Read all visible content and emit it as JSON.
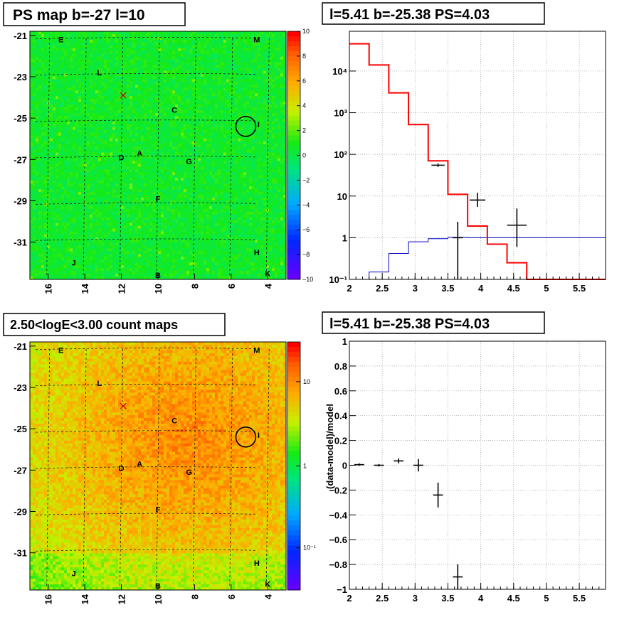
{
  "panels": {
    "ps_map_title": "PS map b=-27 l=10",
    "fit_title": "l=5.41 b=-25.38 PS=4.03",
    "count_map_title": "2.50<logE<3.00 count maps",
    "resid_title": "l=5.41 b=-25.38 PS=4.03"
  },
  "maps": {
    "ytick_labels": [
      "-21",
      "-23",
      "-25",
      "-27",
      "-29",
      "-31"
    ],
    "xtick_labels": [
      "16",
      "14",
      "12",
      "10",
      "8",
      "6",
      "4"
    ],
    "source_labels": [
      {
        "t": "E",
        "l": 15.3,
        "b": -21.2
      },
      {
        "t": "M",
        "l": 4.6,
        "b": -21.2
      },
      {
        "t": "L",
        "l": 13.2,
        "b": -22.8
      },
      {
        "t": "C",
        "l": 9.1,
        "b": -24.6
      },
      {
        "t": "I",
        "l": 4.5,
        "b": -25.3
      },
      {
        "t": "D",
        "l": 12.0,
        "b": -26.9
      },
      {
        "t": "A",
        "l": 11.0,
        "b": -26.7
      },
      {
        "t": "G",
        "l": 8.3,
        "b": -27.1
      },
      {
        "t": "F",
        "l": 10.0,
        "b": -28.9
      },
      {
        "t": "H",
        "l": 4.6,
        "b": -31.5
      },
      {
        "t": "J",
        "l": 14.6,
        "b": -32.0
      },
      {
        "t": "B",
        "l": 10.0,
        "b": -32.6
      },
      {
        "t": "K",
        "l": 4.0,
        "b": -32.5
      }
    ],
    "ps_colorbar_labels": [
      "10",
      "8",
      "6",
      "4",
      "2",
      "0",
      "−2",
      "−4",
      "−6",
      "−8",
      "−10"
    ],
    "count_colorbar_labels": [
      "10",
      "1",
      "10⁻¹"
    ],
    "circle": {
      "l": 5.2,
      "b": -25.4
    },
    "cross": {
      "l": 11.9,
      "b": -23.9
    }
  },
  "chart_data": [
    {
      "type": "heatmap",
      "title": "PS map b=-27 l=10",
      "xlim": [
        17.0,
        3.0
      ],
      "ylim": [
        -32.8,
        -20.8
      ],
      "zlim": [
        -10,
        10
      ]
    },
    {
      "type": "line",
      "title": "l=5.41 b=-25.38 PS=4.03",
      "log_y": true,
      "xlim": [
        2.0,
        5.9
      ],
      "ylim": [
        0.1,
        90000
      ],
      "xtick_labels": [
        "2",
        "2.5",
        "3",
        "3.5",
        "4",
        "4.5",
        "5",
        "5.5"
      ],
      "ytick_labels": [
        "10⁻¹",
        "1",
        "10",
        "10²",
        "10³",
        "10⁴"
      ],
      "series": [
        {
          "color": "#ff0000",
          "bins": [
            2.0,
            2.3,
            2.6,
            2.9,
            3.2,
            3.5,
            3.8,
            4.1,
            4.4,
            4.7,
            5.9
          ],
          "values": [
            45000,
            14000,
            3000,
            520,
            70,
            11,
            1.9,
            0.7,
            0.25,
            0.1
          ]
        },
        {
          "color": "#0000cc",
          "bins": [
            2.0,
            2.3,
            2.6,
            2.9,
            3.2,
            3.5,
            3.8,
            5.9
          ],
          "values": [
            0.1,
            0.15,
            0.42,
            0.8,
            0.95,
            1.02,
            1.0
          ]
        },
        {
          "color": "#000000",
          "points": [
            {
              "x": 3.35,
              "y": 55,
              "xerr": 0.1,
              "ylo": 50,
              "yhi": 60
            },
            {
              "x": 3.65,
              "y": 1.0,
              "xerr": 0.08,
              "ylo": 0.1,
              "yhi": 2.4
            },
            {
              "x": 3.95,
              "y": 8.0,
              "xerr": 0.12,
              "ylo": 5.5,
              "yhi": 12
            },
            {
              "x": 4.55,
              "y": 2.0,
              "xerr": 0.15,
              "ylo": 0.6,
              "yhi": 5
            }
          ]
        }
      ]
    },
    {
      "type": "heatmap",
      "title": "2.50<logE<3.00 count maps",
      "xlim": [
        17.0,
        3.0
      ],
      "ylim": [
        -32.8,
        -20.8
      ],
      "log_z": true,
      "zlim": [
        0.03,
        30
      ]
    },
    {
      "type": "scatter",
      "title": "l=5.41 b=-25.38 PS=4.03",
      "ylabel": "(data-model)/model",
      "xlim": [
        2.0,
        5.9
      ],
      "ylim": [
        -1,
        1
      ],
      "xtick_labels": [
        "2",
        "2.5",
        "3",
        "3.5",
        "4",
        "4.5",
        "5",
        "5.5"
      ],
      "ytick_labels": [
        "1",
        "0.8",
        "0.6",
        "0.4",
        "0.2",
        "0",
        "−0.2",
        "−0.4",
        "−0.6",
        "−0.8",
        "−1"
      ],
      "points": [
        {
          "x": 2.15,
          "y": 0.005,
          "xerr": 0.15,
          "yerr": 0.01
        },
        {
          "x": 2.45,
          "y": 0.0,
          "xerr": 0.15,
          "yerr": 0.01
        },
        {
          "x": 2.75,
          "y": 0.035,
          "xerr": 0.15,
          "yerr": 0.02
        },
        {
          "x": 3.05,
          "y": 0.0,
          "xerr": 0.15,
          "yerr": 0.05
        },
        {
          "x": 3.35,
          "y": -0.24,
          "xerr": 0.15,
          "yerr": 0.1
        },
        {
          "x": 3.65,
          "y": -0.9,
          "xerr": 0.15,
          "yerr": 0.1
        }
      ]
    }
  ]
}
